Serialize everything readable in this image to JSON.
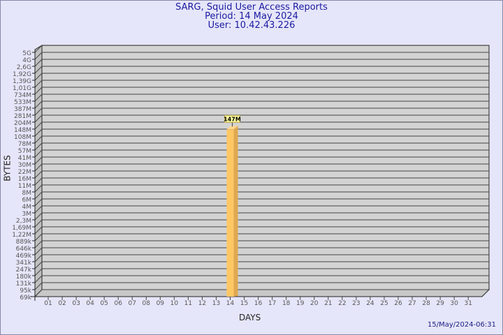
{
  "title": "SARG, Squid User Access Reports",
  "period": "Period: 14 May 2024",
  "user": "User: 10.42.43.226",
  "footer": "15/May/2024-06:31",
  "chart_data": {
    "type": "bar",
    "title": "SARG, Squid User Access Reports",
    "xlabel": "DAYS",
    "ylabel": "BYTES",
    "y_scale": "log",
    "y_ticks": [
      "5G",
      "4G",
      "2,6G",
      "1,92G",
      "1,39G",
      "1,01G",
      "734M",
      "533M",
      "387M",
      "281M",
      "204M",
      "148M",
      "108M",
      "78M",
      "57M",
      "41M",
      "30M",
      "22M",
      "16M",
      "11M",
      "8M",
      "6M",
      "4M",
      "3M",
      "2,3M",
      "1,69M",
      "1,22M",
      "889k",
      "646k",
      "469k",
      "341k",
      "247k",
      "180k",
      "131k",
      "95k",
      "69k"
    ],
    "categories": [
      "01",
      "02",
      "03",
      "04",
      "05",
      "06",
      "07",
      "08",
      "09",
      "10",
      "11",
      "12",
      "13",
      "14",
      "15",
      "16",
      "17",
      "18",
      "19",
      "20",
      "21",
      "22",
      "23",
      "24",
      "25",
      "26",
      "27",
      "28",
      "29",
      "30",
      "31"
    ],
    "bars": [
      {
        "day": "14",
        "value": "147M",
        "label": "147M"
      }
    ],
    "grid": true,
    "colors": {
      "background": "#e6e6fa",
      "plot": "#d3d3d3",
      "bar": "#ffc864",
      "bar_side": "#e0a850",
      "label_box": "#ffffa0"
    }
  }
}
